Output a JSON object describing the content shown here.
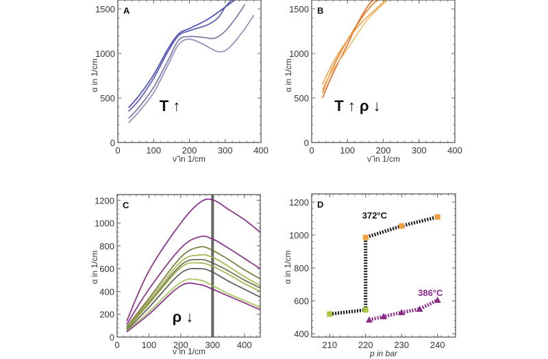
{
  "chart_data": [
    {
      "type": "line",
      "panel_label": "A",
      "xlabel": "ν̃ in 1/cm",
      "ylabel": "α in 1/cm",
      "annotation": "T ↑",
      "xlim": [
        0,
        400
      ],
      "ylim": [
        0,
        1600
      ],
      "xticks": [
        0,
        100,
        200,
        300,
        400
      ],
      "yticks": [
        0,
        500,
        1000,
        1500
      ],
      "grid": false,
      "series": [
        {
          "color": "#4040b0",
          "points": [
            [
              30,
              390
            ],
            [
              60,
              530
            ],
            [
              100,
              760
            ],
            [
              140,
              1050
            ],
            [
              170,
              1220
            ],
            [
              200,
              1280
            ],
            [
              250,
              1380
            ],
            [
              300,
              1520
            ],
            [
              330,
              1610
            ]
          ]
        },
        {
          "color": "#5050a8",
          "points": [
            [
              30,
              350
            ],
            [
              60,
              480
            ],
            [
              100,
              720
            ],
            [
              140,
              1020
            ],
            [
              170,
              1200
            ],
            [
              200,
              1255
            ],
            [
              250,
              1320
            ],
            [
              280,
              1400
            ],
            [
              300,
              1520
            ],
            [
              320,
              1610
            ]
          ]
        },
        {
          "color": "#7070a0",
          "points": [
            [
              30,
              270
            ],
            [
              60,
              400
            ],
            [
              100,
              620
            ],
            [
              140,
              920
            ],
            [
              170,
              1150
            ],
            [
              200,
              1190
            ],
            [
              240,
              1180
            ],
            [
              270,
              1170
            ],
            [
              300,
              1250
            ],
            [
              330,
              1400
            ],
            [
              355,
              1550
            ]
          ]
        },
        {
          "color": "#8888b8",
          "points": [
            [
              30,
              220
            ],
            [
              60,
              350
            ],
            [
              100,
              560
            ],
            [
              140,
              870
            ],
            [
              170,
              1100
            ],
            [
              200,
              1160
            ],
            [
              240,
              1100
            ],
            [
              280,
              1020
            ],
            [
              310,
              1060
            ],
            [
              350,
              1250
            ],
            [
              380,
              1430
            ]
          ]
        }
      ]
    },
    {
      "type": "line",
      "panel_label": "B",
      "xlabel": "ν̃ in 1/cm",
      "ylabel": "α in 1/cm",
      "annotation": "T ↑ ρ ↓",
      "xlim": [
        0,
        400
      ],
      "ylim": [
        0,
        1600
      ],
      "xticks": [
        0,
        100,
        200,
        300,
        400
      ],
      "yticks": [
        0,
        500,
        1000,
        1500
      ],
      "grid": false,
      "series": [
        {
          "color": "#e06010",
          "points": [
            [
              30,
              500
            ],
            [
              60,
              780
            ],
            [
              100,
              1100
            ],
            [
              130,
              1350
            ],
            [
              160,
              1550
            ],
            [
              175,
              1610
            ]
          ]
        },
        {
          "color": "#e87820",
          "points": [
            [
              30,
              560
            ],
            [
              60,
              850
            ],
            [
              100,
              1150
            ],
            [
              140,
              1400
            ],
            [
              170,
              1550
            ],
            [
              190,
              1610
            ]
          ]
        },
        {
          "color": "#f0a040",
          "points": [
            [
              30,
              650
            ],
            [
              60,
              900
            ],
            [
              100,
              1150
            ],
            [
              140,
              1350
            ],
            [
              180,
              1500
            ],
            [
              210,
              1610
            ]
          ]
        },
        {
          "color": "#f0b860",
          "points": [
            [
              30,
              600
            ],
            [
              60,
              820
            ],
            [
              100,
              1050
            ],
            [
              150,
              1350
            ],
            [
              190,
              1520
            ],
            [
              215,
              1610
            ]
          ]
        }
      ]
    },
    {
      "type": "line",
      "panel_label": "C",
      "xlabel": "ν̃ in 1/cm",
      "ylabel": "α in 1/cm",
      "annotation": "ρ ↓",
      "xlim": [
        0,
        450
      ],
      "ylim": [
        0,
        1250
      ],
      "xticks": [
        0,
        100,
        200,
        300,
        400
      ],
      "yticks": [
        0,
        200,
        400,
        600,
        800,
        1000,
        1200
      ],
      "grid": false,
      "vertical_line_x": 300,
      "x": [
        30,
        100,
        200,
        260,
        300,
        350,
        400,
        450
      ],
      "series": [
        {
          "color": "#802080",
          "values": [
            140,
            580,
            1000,
            1180,
            1205,
            1120,
            1030,
            920
          ]
        },
        {
          "color": "#802080",
          "values": [
            110,
            420,
            780,
            880,
            860,
            780,
            690,
            600
          ]
        },
        {
          "color": "#707030",
          "values": [
            90,
            340,
            700,
            790,
            760,
            680,
            590,
            510
          ]
        },
        {
          "color": "#a0b040",
          "values": [
            80,
            320,
            660,
            720,
            700,
            620,
            530,
            450
          ]
        },
        {
          "color": "#606040",
          "values": [
            75,
            300,
            630,
            680,
            650,
            580,
            500,
            430
          ]
        },
        {
          "color": "#a0b040",
          "values": [
            70,
            290,
            610,
            650,
            620,
            550,
            470,
            400
          ]
        },
        {
          "color": "#505050",
          "values": [
            60,
            260,
            560,
            600,
            570,
            490,
            420,
            350
          ]
        },
        {
          "color": "#a0c050",
          "values": [
            55,
            220,
            480,
            500,
            450,
            380,
            320,
            260
          ]
        },
        {
          "color": "#802080",
          "values": [
            45,
            200,
            450,
            460,
            420,
            360,
            300,
            240
          ]
        }
      ]
    },
    {
      "type": "scatter",
      "panel_label": "D",
      "xlabel": "p in bar",
      "ylabel": "α in 1/cm",
      "xlim": [
        205,
        245
      ],
      "ylim": [
        380,
        1250
      ],
      "xticks": [
        210,
        220,
        230,
        240
      ],
      "yticks": [
        400,
        600,
        800,
        1000,
        1200
      ],
      "grid": false,
      "series": [
        {
          "name": "372°C",
          "color": "#111111",
          "points": [
            [
              210,
              520
            ],
            [
              220,
              545
            ],
            [
              220,
              985
            ],
            [
              230,
              1055
            ],
            [
              240,
              1110
            ]
          ],
          "marker_colors": [
            "#a8c840",
            "#a8c840",
            "#f0a040",
            "#f0a040",
            "#f0a040"
          ]
        },
        {
          "name": "386°C",
          "color": "#8a2a8a",
          "marker": "triangle",
          "points": [
            [
              221,
              485
            ],
            [
              225,
              505
            ],
            [
              230,
              530
            ],
            [
              235,
              550
            ],
            [
              240,
              605
            ]
          ]
        }
      ]
    }
  ]
}
